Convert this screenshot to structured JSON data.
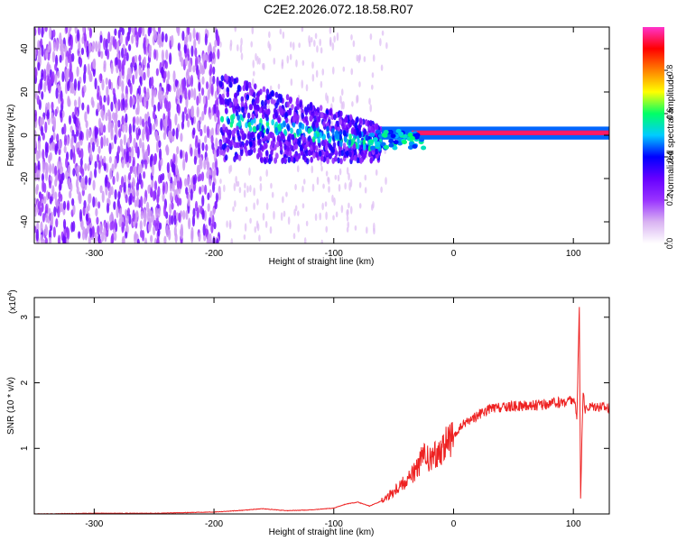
{
  "title": "C2E2.2026.072.18.58.R07",
  "chart_data": [
    {
      "type": "heatmap",
      "xlabel": "Height of straight line (km)",
      "ylabel": "Frequency (Hz)",
      "xlim": [
        -350,
        130
      ],
      "ylim": [
        -50,
        50
      ],
      "x_ticks": [
        -300,
        -200,
        -100,
        0,
        100
      ],
      "y_ticks": [
        -40,
        -20,
        0,
        20,
        40
      ],
      "colorbar": {
        "label": "Normalized spectral amplitude",
        "range": [
          0,
          1
        ],
        "ticks": [
          0.0,
          0.2,
          0.4,
          0.6,
          0.8
        ],
        "tick_labels": [
          "0.0",
          "0.2",
          "0.4",
          "0.6",
          "0.8"
        ],
        "colors": [
          "#ffffff",
          "#d9b3f2",
          "#9933ff",
          "#6600ff",
          "#0000ff",
          "#00ccff",
          "#00ff66",
          "#ffff00",
          "#ff8000",
          "#ff0000",
          "#ff33cc"
        ]
      },
      "features": [
        {
          "region": "noise",
          "x_range": [
            -350,
            -195
          ],
          "freq_range": [
            -50,
            50
          ],
          "level": 0.15
        },
        {
          "region": "transition",
          "x_range": [
            -195,
            -60
          ],
          "freq_center": 5,
          "level": 0.3
        },
        {
          "region": "signal_line",
          "x_range": [
            -60,
            130
          ],
          "freq_center": 1,
          "level": 0.95
        }
      ]
    },
    {
      "type": "line",
      "xlabel": "Height of straight line (km)",
      "ylabel": "SNR (10 * v/v)",
      "multiplier_label": "(x10",
      "multiplier_exp": "4",
      "xlim": [
        -350,
        130
      ],
      "ylim": [
        0,
        3.3
      ],
      "x_ticks": [
        -300,
        -200,
        -100,
        0,
        100
      ],
      "y_ticks": [
        1,
        2,
        3
      ],
      "color": "#ee2222",
      "series": [
        {
          "x": [
            -350,
            -300,
            -250,
            -200,
            -180,
            -160,
            -140,
            -120,
            -100,
            -90,
            -80,
            -70,
            -60,
            -50,
            -45,
            -40,
            -35,
            -30,
            -25,
            -20,
            -15,
            -10,
            -5,
            0,
            5,
            10,
            15,
            20,
            25,
            30,
            40,
            50,
            60,
            70,
            80,
            90,
            95,
            100,
            103,
            105,
            106,
            108,
            110,
            115,
            120,
            130
          ],
          "y": [
            0.0,
            0.01,
            0.01,
            0.03,
            0.05,
            0.08,
            0.05,
            0.06,
            0.09,
            0.15,
            0.18,
            0.12,
            0.2,
            0.35,
            0.45,
            0.5,
            0.6,
            0.7,
            0.9,
            0.8,
            0.9,
            1.0,
            1.1,
            1.15,
            1.3,
            1.4,
            1.45,
            1.5,
            1.55,
            1.6,
            1.62,
            1.64,
            1.65,
            1.66,
            1.68,
            1.7,
            1.72,
            1.75,
            1.5,
            3.2,
            0.2,
            1.8,
            1.6,
            1.65,
            1.65,
            1.62
          ]
        }
      ]
    }
  ]
}
